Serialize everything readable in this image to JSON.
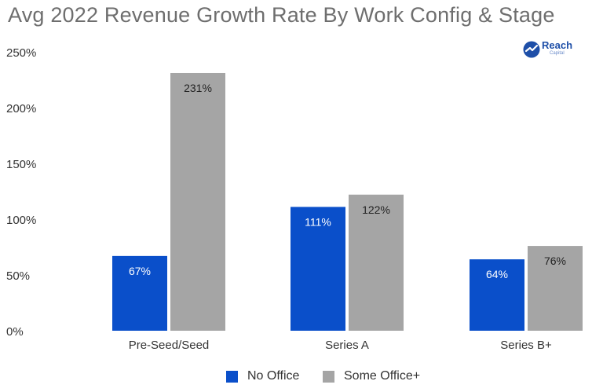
{
  "title": "Avg 2022 Revenue Growth Rate By Work Config & Stage",
  "logo": {
    "name": "Reach",
    "sub": "Capital",
    "icon": "reach-capital-logo-icon"
  },
  "colors": {
    "no_office": "#0a4fca",
    "some_office": "#a5a5a5",
    "axis_text": "#333333"
  },
  "chart_data": {
    "type": "bar",
    "title": "Avg 2022 Revenue Growth Rate By Work Config & Stage",
    "categories": [
      "Pre-Seed/Seed",
      "Series A",
      "Series B+"
    ],
    "series": [
      {
        "name": "No Office",
        "values": [
          67,
          111,
          64
        ],
        "labels": [
          "67%",
          "111%",
          "64%"
        ]
      },
      {
        "name": "Some Office+",
        "values": [
          231,
          122,
          76
        ],
        "labels": [
          "231%",
          "122%",
          "76%"
        ]
      }
    ],
    "ylim": [
      0,
      250
    ],
    "yticks": [
      0,
      50,
      100,
      150,
      200,
      250
    ],
    "ytick_labels": [
      "0%",
      "50%",
      "100%",
      "150%",
      "200%",
      "250%"
    ],
    "grid": false,
    "legend_position": "bottom-center"
  }
}
